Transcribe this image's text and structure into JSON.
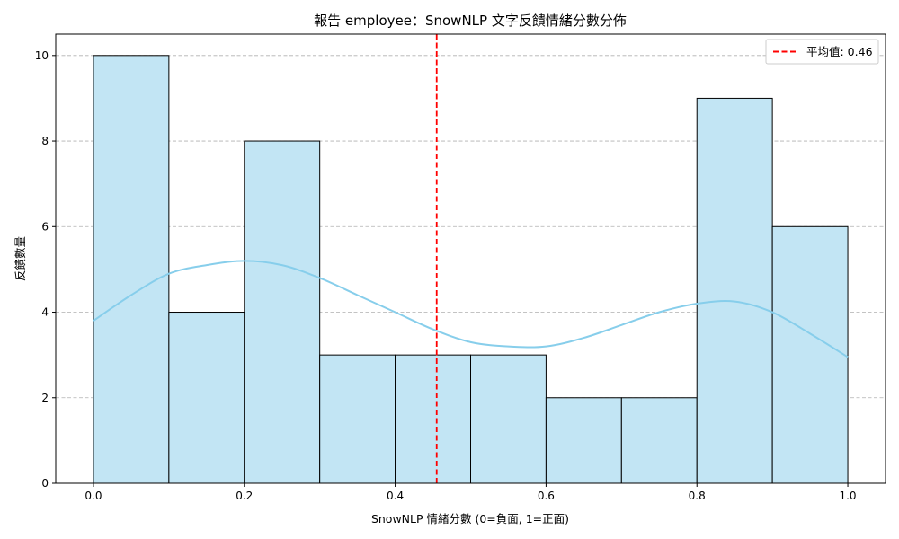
{
  "chart_data": {
    "type": "histogram",
    "title": "報告 employee：SnowNLP 文字反饋情緒分數分佈",
    "xlabel": "SnowNLP 情緒分數 (0=負面, 1=正面)",
    "ylabel": "反饋數量",
    "xlim": [
      -0.05,
      1.05
    ],
    "ylim": [
      0,
      10.5
    ],
    "x_ticks": [
      0.0,
      0.2,
      0.4,
      0.6,
      0.8,
      1.0
    ],
    "x_tick_labels": [
      "0.0",
      "0.2",
      "0.4",
      "0.6",
      "0.8",
      "1.0"
    ],
    "y_ticks": [
      0,
      2,
      4,
      6,
      8,
      10
    ],
    "y_tick_labels": [
      "0",
      "2",
      "4",
      "6",
      "8",
      "10"
    ],
    "bins": [
      {
        "start": 0.0,
        "end": 0.1,
        "count": 10
      },
      {
        "start": 0.1,
        "end": 0.2,
        "count": 4
      },
      {
        "start": 0.2,
        "end": 0.3,
        "count": 8
      },
      {
        "start": 0.3,
        "end": 0.4,
        "count": 3
      },
      {
        "start": 0.4,
        "end": 0.5,
        "count": 3
      },
      {
        "start": 0.5,
        "end": 0.6,
        "count": 3
      },
      {
        "start": 0.6,
        "end": 0.7,
        "count": 2
      },
      {
        "start": 0.7,
        "end": 0.8,
        "count": 2
      },
      {
        "start": 0.8,
        "end": 0.9,
        "count": 9
      },
      {
        "start": 0.9,
        "end": 1.0,
        "count": 6
      }
    ],
    "kde": {
      "x": [
        0.0,
        0.05,
        0.1,
        0.15,
        0.2,
        0.25,
        0.3,
        0.35,
        0.4,
        0.45,
        0.5,
        0.55,
        0.6,
        0.65,
        0.7,
        0.75,
        0.8,
        0.85,
        0.9,
        0.95,
        1.0
      ],
      "y": [
        3.8,
        4.4,
        4.9,
        5.1,
        5.2,
        5.1,
        4.8,
        4.4,
        4.0,
        3.6,
        3.3,
        3.2,
        3.2,
        3.4,
        3.7,
        4.0,
        4.2,
        4.25,
        4.0,
        3.5,
        2.95
      ]
    },
    "mean_line": {
      "value": 0.455,
      "legend_label": "平均值: 0.46"
    },
    "grid": {
      "y": true,
      "x": false
    },
    "legend_position": "top-right",
    "colors": {
      "bar_fill": "#c2e5f4",
      "bar_edge": "#000000",
      "kde_line": "#87ceeb",
      "mean_line": "#ff0000",
      "grid": "#b0b0b0"
    }
  }
}
